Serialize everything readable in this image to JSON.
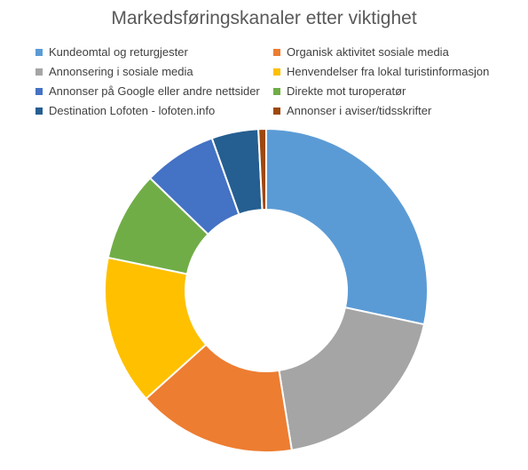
{
  "chart_data": {
    "type": "pie",
    "variant": "donut",
    "title": "Markedsføringskanaler etter viktighet",
    "legend_position": "top",
    "series": [
      {
        "name": "Kundeomtal og returgjester",
        "value": 29.1,
        "color": "#5B9BD5"
      },
      {
        "name": "Annonsering i sosiale media",
        "value": 19.6,
        "color": "#A5A5A5"
      },
      {
        "name": "Organisk aktivitet sosiale media",
        "value": 16.3,
        "color": "#ED7D31"
      },
      {
        "name": "Henvendelser fra lokal turistinformasjon",
        "value": 15.3,
        "color": "#FFC000"
      },
      {
        "name": "Direkte mot turoperatør",
        "value": 9.2,
        "color": "#70AD47"
      },
      {
        "name": "Annonser på Google eller andre nettsider",
        "value": 7.5,
        "color": "#4472C4"
      },
      {
        "name": "Destination Lofoten - lofoten.info",
        "value": 4.8,
        "color": "#255E91"
      },
      {
        "name": "Annonser i aviser/tidsskrifter",
        "value": 0.8,
        "color": "#9E480E"
      }
    ],
    "legend_order": [
      0,
      2,
      1,
      3,
      5,
      4,
      6,
      7
    ]
  }
}
